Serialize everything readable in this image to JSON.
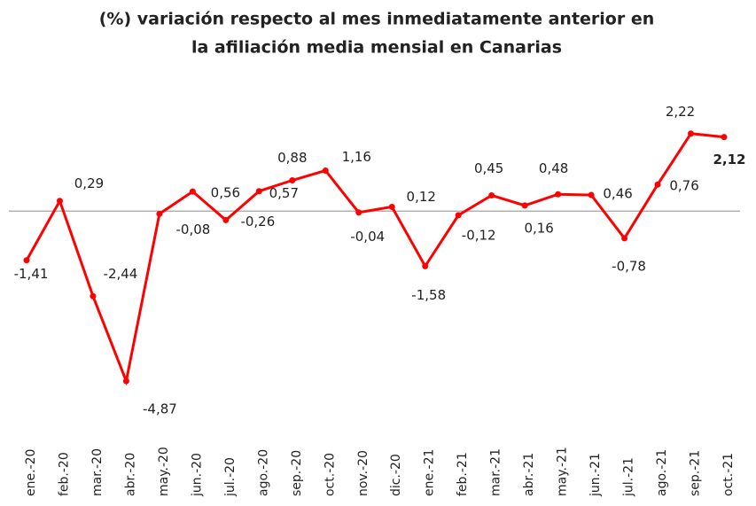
{
  "chart_data": {
    "type": "line",
    "title": [
      "(%) variación respecto al mes inmediatamente anterior en",
      "la afiliación media mensial en Canarias"
    ],
    "categories": [
      "ene.-20",
      "feb.-20",
      "mar.-20",
      "abr.-20",
      "may.-20",
      "jun.-20",
      "jul.-20",
      "ago.-20",
      "sep.-20",
      "oct.-20",
      "nov.-20",
      "dic.-20",
      "ene.-21",
      "feb.-21",
      "mar.-21",
      "abr.-21",
      "may.-21",
      "jun.-21",
      "jul.-21",
      "ago.-21",
      "sep.-21",
      "oct.-21"
    ],
    "series": [
      {
        "name": "variación",
        "color": "#ff0000",
        "values": [
          -1.41,
          0.29,
          -2.44,
          -4.87,
          -0.08,
          0.56,
          -0.26,
          0.57,
          0.88,
          1.16,
          -0.04,
          0.12,
          -1.58,
          -0.12,
          0.45,
          0.16,
          0.48,
          0.46,
          -0.78,
          0.76,
          2.22,
          2.12
        ],
        "value_labels": [
          "-1,41",
          "0,29",
          "-2,44",
          "-4,87",
          "-0,08",
          "0,56",
          "-0,26",
          "0,57",
          "0,88",
          "1,16",
          "-0,04",
          "0,12",
          "-1,58",
          "-0,12",
          "0,45",
          "0,16",
          "0,48",
          "0,46",
          "-0,78",
          "0,76",
          "2,22",
          "2,12"
        ]
      }
    ],
    "ylim": [
      -5.2,
      3
    ]
  }
}
